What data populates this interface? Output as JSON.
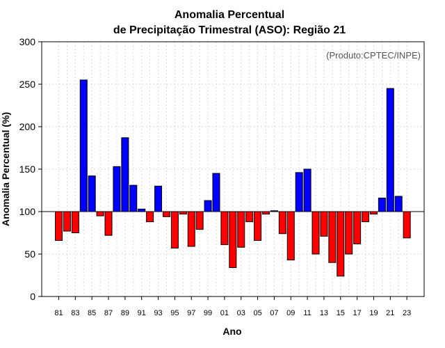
{
  "chart_data": {
    "type": "bar",
    "title_line1": "Anomalia Percentual",
    "title_line2": "de Precipitação Trimestral (ASO): Região 21",
    "xlabel": "Ano",
    "ylabel": "Anomalia Percentual (%)",
    "source": "(Produto:CPTEC/INPE)",
    "ylim": [
      0,
      300
    ],
    "yticks": [
      0,
      50,
      100,
      150,
      200,
      250,
      300
    ],
    "reference_value": 100,
    "colors": {
      "above": "#0000ff",
      "below": "#ff0000"
    },
    "categories": [
      "81",
      "82",
      "83",
      "84",
      "85",
      "86",
      "87",
      "88",
      "89",
      "90",
      "91",
      "92",
      "93",
      "94",
      "95",
      "96",
      "97",
      "98",
      "99",
      "00",
      "01",
      "02",
      "03",
      "04",
      "05",
      "06",
      "07",
      "08",
      "09",
      "10",
      "11",
      "12",
      "13",
      "14",
      "15",
      "16",
      "17",
      "18",
      "19",
      "20",
      "21",
      "22",
      "23"
    ],
    "xtick_labels": [
      "81",
      "83",
      "85",
      "87",
      "89",
      "91",
      "93",
      "95",
      "97",
      "99",
      "01",
      "03",
      "05",
      "07",
      "09",
      "11",
      "13",
      "15",
      "17",
      "19",
      "21",
      "23"
    ],
    "values": [
      66,
      77,
      75,
      255,
      142,
      95,
      72,
      153,
      187,
      131,
      103,
      88,
      130,
      94,
      57,
      97,
      59,
      79,
      113,
      145,
      61,
      34,
      58,
      88,
      66,
      97,
      101,
      74,
      43,
      146,
      150,
      50,
      71,
      40,
      24,
      50,
      62,
      88,
      97,
      116,
      245,
      118,
      69
    ]
  }
}
